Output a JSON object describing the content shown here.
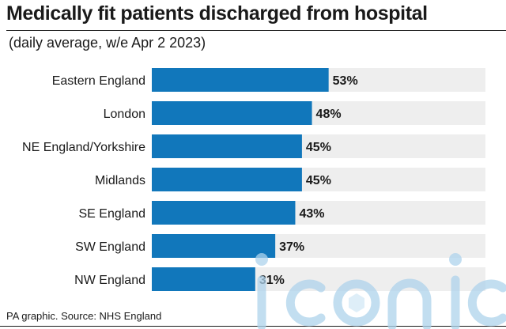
{
  "title": "Medically fit patients discharged from hospital",
  "subtitle": "(daily average, w/e Apr 2 2023)",
  "source": "PA graphic. Source: NHS England",
  "watermark_text": "iconic",
  "colors": {
    "bar": "#1177bb",
    "track": "#eeeeee",
    "text": "#1a1a1a"
  },
  "chart_data": {
    "type": "bar",
    "orientation": "horizontal",
    "categories": [
      "Eastern England",
      "London",
      "NE England/Yorkshire",
      "Midlands",
      "SE England",
      "SW England",
      "NW England"
    ],
    "values": [
      53,
      48,
      45,
      45,
      43,
      37,
      31
    ],
    "value_labels": [
      "53%",
      "48%",
      "45%",
      "45%",
      "43%",
      "37%",
      "31%"
    ],
    "unit": "%",
    "xlim": [
      0,
      100
    ],
    "grid": false,
    "legend": "none"
  }
}
